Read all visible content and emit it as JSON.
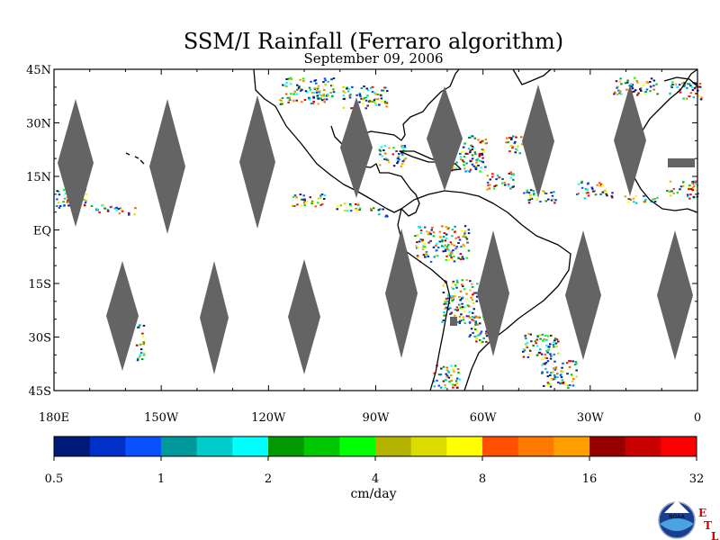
{
  "title": "SSM/I Rainfall (Ferraro algorithm)",
  "subtitle": "September 09, 2006",
  "map": {
    "lat_labels": [
      "45N",
      "30N",
      "15N",
      "EQ",
      "15S",
      "30S",
      "45S"
    ],
    "lon_labels": [
      "180E",
      "150W",
      "120W",
      "90W",
      "60W",
      "30W",
      "0"
    ],
    "lat_range": [
      -45,
      45
    ],
    "lon_range": [
      -180,
      0
    ],
    "swath_gap_color": "#646464",
    "land_outline": "#000000"
  },
  "colorbar": {
    "colors": [
      "#001a7a",
      "#0030c8",
      "#0a50ff",
      "#00999b",
      "#00cccc",
      "#00ffff",
      "#009900",
      "#00c800",
      "#00ff00",
      "#b4b400",
      "#dcdc00",
      "#ffff00",
      "#ff5000",
      "#ff7800",
      "#ffa000",
      "#960000",
      "#c80000",
      "#ff0000"
    ],
    "tick_labels": [
      "0.5",
      "1",
      "2",
      "4",
      "8",
      "16",
      "32"
    ],
    "label": "cm/day"
  },
  "logo": {
    "text": "NOAA",
    "etl_letters": [
      "E",
      "T",
      "L"
    ]
  }
}
